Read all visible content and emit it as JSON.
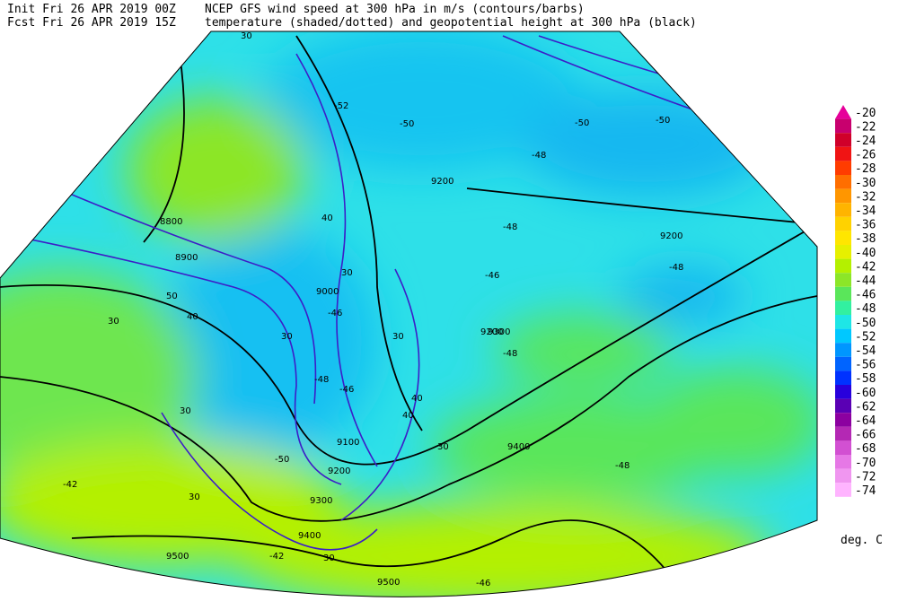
{
  "header": {
    "init": "Init  Fri 26 APR 2019 00Z",
    "fcst": "Fcst Fri 26 APR 2019 15Z",
    "line1": "NCEP GFS wind speed at 300 hPa in m/s (contours/barbs)",
    "line2": "temperature (shaded/dotted) and geopotential height at 300 hPa (black)"
  },
  "colorbar": {
    "levels": [
      -20,
      -22,
      -24,
      -26,
      -28,
      -30,
      -32,
      -34,
      -36,
      -38,
      -40,
      -42,
      -44,
      -46,
      -48,
      -50,
      -52,
      -54,
      -56,
      -58,
      -60,
      -62,
      -64,
      -66,
      -68,
      -70,
      -72,
      -74
    ],
    "colors": [
      "#e6009a",
      "#c8006e",
      "#d0002a",
      "#f01414",
      "#ff3c00",
      "#ff6e00",
      "#ff9600",
      "#ffb400",
      "#ffd200",
      "#ffe600",
      "#e6f000",
      "#b4f000",
      "#8ce628",
      "#5ae65a",
      "#32f0a0",
      "#1ee6e6",
      "#00c8ff",
      "#0096ff",
      "#0064ff",
      "#0032ff",
      "#2800dc",
      "#5a00b4",
      "#8c00a0",
      "#b428b4",
      "#d250d2",
      "#e678e6",
      "#f096f0",
      "#ffb4ff"
    ],
    "unit": "deg. C"
  },
  "map": {
    "height_labels": [
      9200,
      9200,
      9200,
      8800,
      8900,
      9000,
      9300,
      9100,
      9200,
      9300,
      9400,
      9400,
      9500,
      9500
    ],
    "wind_labels": [
      30,
      40,
      30,
      50,
      40,
      30,
      30,
      30,
      40,
      40,
      30,
      30,
      30,
      30
    ],
    "temp_labels": [
      -52,
      -50,
      -50,
      -50,
      -48,
      -48,
      -46,
      -48,
      -46,
      -48,
      -48,
      -46,
      -42,
      -42,
      -46,
      -48,
      -50
    ]
  }
}
